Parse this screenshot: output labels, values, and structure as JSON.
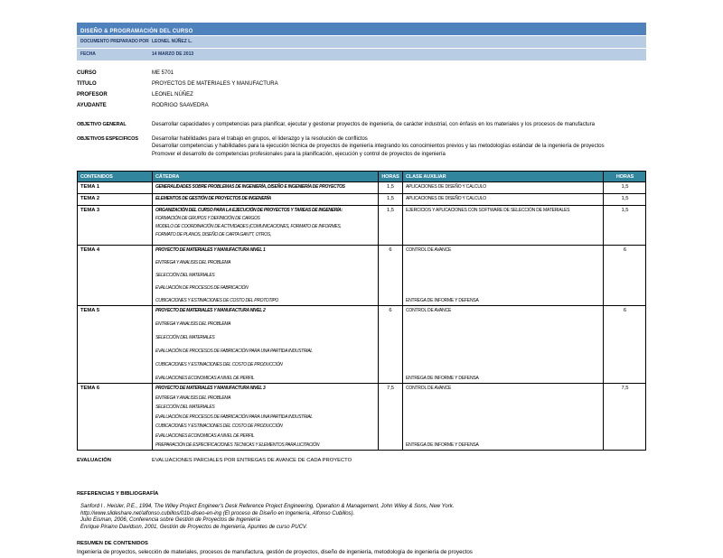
{
  "colors": {
    "title_bar": "#4f81bd",
    "subheader": "#b8cce4",
    "table_header": "#31859c"
  },
  "header": {
    "title": "DISEÑO & PROGRAMACIÓN DEL CURSO",
    "prepared_by_label": "DOCUMENTO PREPARADO POR",
    "prepared_by": "LEONEL NÚÑEZ L.",
    "date_label": "FECHA",
    "date": "14 MARZO DE 2013"
  },
  "info": [
    {
      "label": "CURSO",
      "value": "ME 5701"
    },
    {
      "label": "TITULO",
      "value": "PROYECTOS DE MATERIALES Y MANUFACTURA"
    },
    {
      "label": "PROFESOR",
      "value": "LEONEL NÚÑEZ"
    },
    {
      "label": "AYUDANTE",
      "value": "RODRIGO SAAVEDRA"
    }
  ],
  "objectives": {
    "general_label": "OBJETIVO GENERAL",
    "general": "Desarrollar capacidades y competencias para planificar, ejecutar y gestionar proyectos de ingeniería, de carácter industrial, con énfasis en los materiales y los procesos de manufactura",
    "specific_label": "OBJETIVOS ESPECIFICOS",
    "specific": [
      "Desarrollar habilidades para el trabajo en grupos, el liderazgo y la resolución de conflictos",
      "Desarrollar competencias y habilidades para la ejecución técnica de proyectos  de ingeniería integrando los conocimientos previos y las metodologías estándar de la ingeniería de proyectos",
      "Promover el desarrollo de competencias profesionales para la planificación, ejecución y control de proyectos de ingeniería"
    ]
  },
  "table": {
    "headers": [
      "CONTENIDOS",
      "CÁTEDRA",
      "HORAS",
      "CLASE AUXILIAR",
      "HORAS"
    ],
    "rows": [
      {
        "tema": "TEMA 1",
        "catedra_title": "GENERALIDADES SOBRE PROBLEMAS DE INGENIERÍA, DISEÑO E INGENIERÍA DE PROYECTOS",
        "catedra_items": [],
        "horas": "1,5",
        "auxiliar": "APLICACIONES DE DISEÑO Y CALCULO",
        "auxiliar_footer": "",
        "horas_aux": "1,5"
      },
      {
        "tema": "TEMA 2",
        "catedra_title": "ELEMENTOS DE GESTIÓN DE PROYECTOS DE INGENERÍA",
        "catedra_items": [],
        "horas": "1,5",
        "auxiliar": "APLICACIONES DE DISEÑO Y CALCULO",
        "auxiliar_footer": "",
        "horas_aux": "1,5"
      },
      {
        "tema": "TEMA 3",
        "catedra_title": "ORGANIZACIÓN DEL CURSO PARA LA EJECUCIÓN DE PROYECTOS Y TAREAS DE INGENERÍA:",
        "catedra_items": [
          "FORMACIÓN DE GRUPOS Y DEFINICIÓN DE CARGOS",
          "MODELO DE COORDINACIÓN DE ACTIVIDADES (COMUNICACIONES, FORMATO DE INFORMES,",
          "FORMATO DE PLANOS, DISEÑO DE CARTA GANTT, OTROS,"
        ],
        "horas": "1,5",
        "auxiliar": "EJERCICIOS Y APLICACIONES CON SOFTWARE DE SELECCIÓN DE MATERIALES",
        "auxiliar_footer": "",
        "horas_aux": "1,5"
      },
      {
        "tema": "TEMA 4",
        "catedra_title": "PROYECTO DE MATERIALES Y MANUFACTURA NIVEL 1",
        "catedra_items": [
          "ENTREGA Y ANALISIS DEL PROBLEMA",
          "SELECCIÓN DEL MATERIALES",
          "EVALUACIÓN DE PROCESOS DE FABRICACIÓN",
          "CUBICACIONES Y ESTIMACIONES DE COSTO DEL PROTOTIPO"
        ],
        "horas": "6",
        "auxiliar": "CONTROL DE AVANCE",
        "auxiliar_footer": "ENTREGA DE INFORME Y DEFENSA",
        "horas_aux": "6"
      },
      {
        "tema": "TEMA 5",
        "catedra_title": "PROYECTO DE MATERIALES Y MANUFACTURA NIVEL 2",
        "catedra_items": [
          "ENTREGA Y ANALISIS DEL PROBLEMA",
          "SELECCIÓN DEL MATERIALES",
          "EVALUACIÓN DE PROCESOS DE FABRICACIÓN PARA UNA PARTIDA INDUSTRIAL",
          "CUBICACIONES Y ESTIMACIONES DEL COSTO DE PRODUCCIÓN",
          "EVALUACIONES ECONOMICAS A NIVEL DE PERFIL"
        ],
        "horas": "6",
        "auxiliar": "CONTROL DE AVANCE",
        "auxiliar_footer": "ENTREGA DE INFORME Y DEFENSA",
        "horas_aux": "6"
      },
      {
        "tema": "TEMA 6",
        "catedra_title": "PROYECTO DE MATERIALES Y MANUFACTURA NIVEL 3",
        "catedra_items": [
          "ENTREGA Y ANALISIS DEL PROBLEMA",
          "SELECCIÓN DEL MATERIALES",
          "EVALUACIÓN DE PROCESOS DE FABRICACIÓN PARA UNA PARTIDA INDUSTRIAL",
          "CUBICACIONES Y ESTIMACIONES DEL COSTO DE PRODUCCIÓN",
          "EVALUACIONES ECONOMICAS A NIVEL DE PERFIL",
          "PREPARACIÓN DE ESPECIFICACIONES TECNICAS Y ELEMENTOS PARA LICITACIÓN"
        ],
        "horas": "7,5",
        "auxiliar": "CONTROL DE AVANCE",
        "auxiliar_footer": "ENTREGA DE INFORME Y DEFENSA",
        "horas_aux": "7,5"
      }
    ]
  },
  "evaluation": {
    "label": "EVALUACIÓN",
    "text": "EVALUACIONES PARCIALES POR ENTREGAS DE AVANCE DE CADA PROYECTO"
  },
  "references": {
    "title": "REFERENCIAS Y BIBLIOGRAFÍA",
    "items": [
      "Sanford I . Heisler, P.E., 1994, The Wiley Project Engineer's Desk Reference Project  Engineering, Operation & Management, John Wiley & Sons, New York.",
      "http://www.slideshare.net/alfonso.cubillos/01b-diseo-en-ing (El proceso de Diseño en Ingeniería, Alfonso Cubillos).",
      "Julio Eisman, 2006, Conferencia sobre Gestión de Proyectos de Ingeniería",
      "Enrique Piraino Davidson, 2001, Gestión de Proyectos de Ingeniería, Apuntes de curso PUCV."
    ]
  },
  "summary": {
    "title": "RESUMEN DE CONTENIDOS",
    "text": "Ingeniería de proyectos, selección de materiales, procesos de manufactura, gestión de proyectos, diseño de ingeniería, metodología de ingeniería de proyectos"
  }
}
